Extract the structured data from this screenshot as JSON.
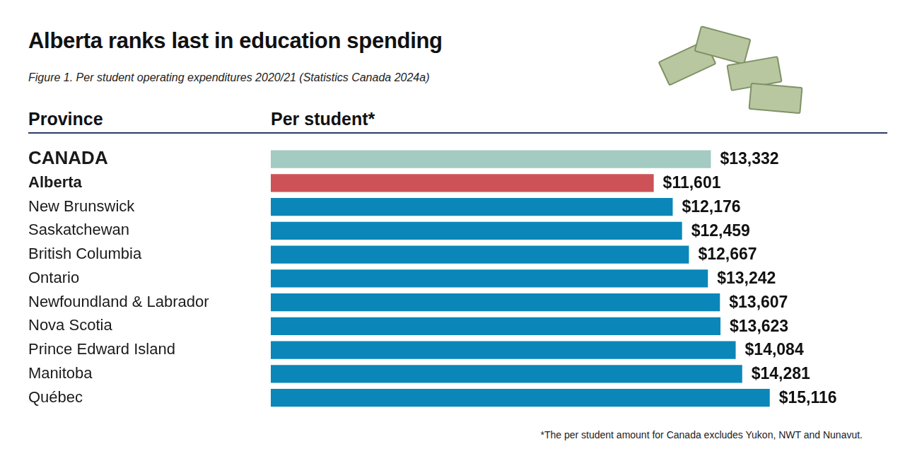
{
  "chart_data": {
    "type": "bar",
    "orientation": "horizontal",
    "title": "Alberta ranks last in education spending",
    "subtitle": "Figure 1. Per student operating expenditures 2020/21 (Statistics Canada 2024a)",
    "y_label": "Province",
    "x_label": "Per student*",
    "annotations": [
      "*The per student amount for Canada excludes Yukon, NWT and Nunavut."
    ],
    "categories": [
      "CANADA",
      "Alberta",
      "New Brunswick",
      "Saskatchewan",
      "British Columbia",
      "Ontario",
      "Newfoundland & Labrador",
      "Nova Scotia",
      "Prince Edward Island",
      "Manitoba",
      "Québec"
    ],
    "values": [
      13332,
      11601,
      12176,
      12459,
      12667,
      13242,
      13607,
      13623,
      14084,
      14281,
      15116
    ],
    "value_labels": [
      "$13,332",
      "$11,601",
      "$12,176",
      "$12,459",
      "$12,667",
      "$13,242",
      "$13,607",
      "$13,623",
      "$14,084",
      "$14,281",
      "$15,116"
    ],
    "colors": [
      "#a3cbc1",
      "#cd5258",
      "#0a87b8",
      "#0a87b8",
      "#0a87b8",
      "#0a87b8",
      "#0a87b8",
      "#0a87b8",
      "#0a87b8",
      "#0a87b8",
      "#0a87b8"
    ],
    "xlim": [
      0,
      16000
    ],
    "grid": false,
    "data_labels": true,
    "tick_labels": "y"
  }
}
